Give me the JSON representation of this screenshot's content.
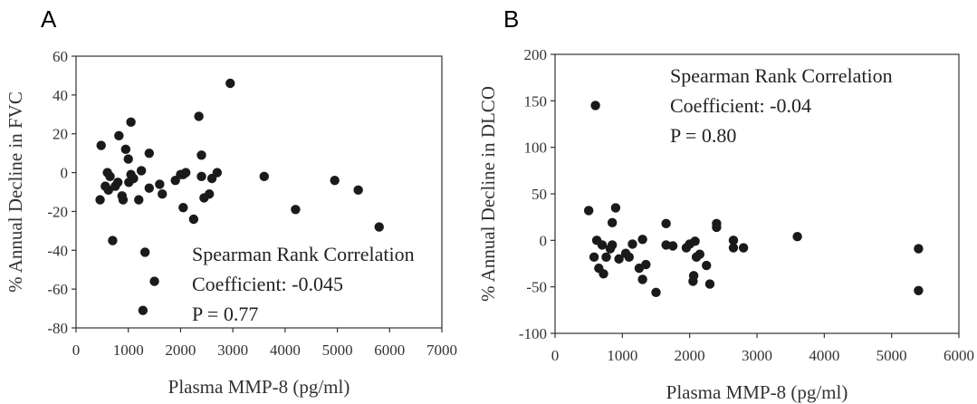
{
  "chart_data": [
    {
      "type": "scatter",
      "panel_label": "A",
      "xlabel": "Plasma MMP-8 (pg/ml)",
      "ylabel": "% Annual Decline in FVC",
      "xlim": [
        0,
        7000
      ],
      "ylim": [
        -80,
        60
      ],
      "xticks": [
        0,
        1000,
        2000,
        3000,
        4000,
        5000,
        6000,
        7000
      ],
      "yticks": [
        -80,
        -60,
        -40,
        -20,
        0,
        20,
        40,
        60
      ],
      "grid": false,
      "annotations": [
        "Spearman Rank Correlation",
        "Coefficient: -0.045",
        "P = 0.77"
      ],
      "points": [
        [
          480,
          14
        ],
        [
          460,
          -14
        ],
        [
          560,
          -7
        ],
        [
          600,
          0
        ],
        [
          650,
          -2
        ],
        [
          620,
          -9
        ],
        [
          700,
          -35
        ],
        [
          750,
          -7
        ],
        [
          800,
          -5
        ],
        [
          820,
          19
        ],
        [
          880,
          -12
        ],
        [
          900,
          -14
        ],
        [
          950,
          12
        ],
        [
          1000,
          7
        ],
        [
          1010,
          -5
        ],
        [
          1050,
          26
        ],
        [
          1050,
          -1
        ],
        [
          1100,
          -3
        ],
        [
          1200,
          -14
        ],
        [
          1250,
          1
        ],
        [
          1280,
          -71
        ],
        [
          1320,
          -41
        ],
        [
          1400,
          10
        ],
        [
          1400,
          -8
        ],
        [
          1500,
          -56
        ],
        [
          1600,
          -6
        ],
        [
          1650,
          -11
        ],
        [
          1900,
          -4
        ],
        [
          2000,
          -1
        ],
        [
          2050,
          -18
        ],
        [
          2050,
          -1
        ],
        [
          2100,
          0
        ],
        [
          2250,
          -24
        ],
        [
          2350,
          29
        ],
        [
          2400,
          9
        ],
        [
          2400,
          -2
        ],
        [
          2450,
          -13
        ],
        [
          2550,
          -11
        ],
        [
          2600,
          -3
        ],
        [
          2700,
          0
        ],
        [
          2950,
          46
        ],
        [
          3600,
          -2
        ],
        [
          4200,
          -19
        ],
        [
          4950,
          -4
        ],
        [
          5400,
          -9
        ],
        [
          5800,
          -28
        ]
      ]
    },
    {
      "type": "scatter",
      "panel_label": "B",
      "xlabel": "Plasma MMP-8 (pg/ml)",
      "ylabel": "% Annual Decline in DLCO",
      "xlim": [
        0,
        6000
      ],
      "ylim": [
        -100,
        200
      ],
      "xticks": [
        0,
        1000,
        2000,
        3000,
        4000,
        5000,
        6000
      ],
      "yticks": [
        -100,
        -50,
        0,
        50,
        100,
        150,
        200
      ],
      "grid": false,
      "annotations": [
        "Spearman Rank Correlation",
        "Coefficient: -0.04",
        "P = 0.80"
      ],
      "points": [
        [
          500,
          32
        ],
        [
          580,
          -18
        ],
        [
          600,
          145
        ],
        [
          620,
          0
        ],
        [
          650,
          -30
        ],
        [
          700,
          -5
        ],
        [
          720,
          -36
        ],
        [
          760,
          -18
        ],
        [
          820,
          -9
        ],
        [
          850,
          19
        ],
        [
          850,
          -5
        ],
        [
          900,
          35
        ],
        [
          950,
          -20
        ],
        [
          1050,
          -14
        ],
        [
          1100,
          -18
        ],
        [
          1150,
          -4
        ],
        [
          1250,
          -30
        ],
        [
          1300,
          1
        ],
        [
          1300,
          -42
        ],
        [
          1350,
          -26
        ],
        [
          1500,
          -56
        ],
        [
          1650,
          18
        ],
        [
          1650,
          -5
        ],
        [
          1750,
          -6
        ],
        [
          1950,
          -8
        ],
        [
          2000,
          -4
        ],
        [
          2050,
          -44
        ],
        [
          2060,
          -38
        ],
        [
          2080,
          -1
        ],
        [
          2100,
          -18
        ],
        [
          2150,
          -15
        ],
        [
          2250,
          -27
        ],
        [
          2300,
          -47
        ],
        [
          2400,
          18
        ],
        [
          2400,
          14
        ],
        [
          2650,
          0
        ],
        [
          2650,
          -8
        ],
        [
          2800,
          -8
        ],
        [
          3600,
          4
        ],
        [
          5400,
          -9
        ],
        [
          5400,
          -54
        ]
      ]
    }
  ]
}
